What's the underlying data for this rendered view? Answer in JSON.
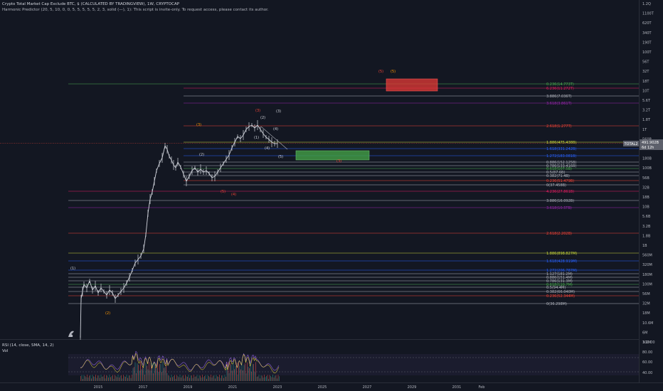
{
  "header": {
    "title": "Crypto Total Market Cap Exclude BTC, $ (CALCULATED BY TRADINGVIEW), 1W, CRYPTOCAP",
    "indicator": "Harmonic Predictor (20, 5, 10, 0, 0, 5, 5, 5, 5, 5, 2, 3, solid (—), 1): This script is invite-only. To request access, please contact its author."
  },
  "price_axis": {
    "labels": [
      "1.2Q",
      "1100T",
      "620T",
      "340T",
      "190T",
      "100T",
      "56T",
      "32T",
      "18T",
      "10T",
      "5.6T",
      "3.2T",
      "1.8T",
      "1T",
      "560B",
      "320B",
      "180B",
      "100B",
      "56B",
      "32B",
      "18B",
      "10B",
      "5.6B",
      "3.2B",
      "1.8B",
      "1B",
      "560M",
      "320M",
      "180M",
      "100M",
      "56M",
      "32M",
      "18M",
      "10.6M",
      "6M",
      "3.2M"
    ],
    "current_symbol": "TOTAL2",
    "current_price": "491.902B",
    "countdown": "6d 12h"
  },
  "rsi_axis": {
    "labels": [
      "100.00",
      "80.00",
      "60.00",
      "40.00"
    ]
  },
  "time_axis": {
    "labels": [
      "2015",
      "2017",
      "2019",
      "2021",
      "2023",
      "2025",
      "2027",
      "2029",
      "2031",
      "Feb"
    ]
  },
  "rsi": {
    "label": "RSI (14, close, SMA, 14, 2)"
  },
  "volume": {
    "label": "Vol"
  },
  "fib_levels": {
    "upper": [
      {
        "text": "0.236(14.773T)",
        "color": "#4caf50"
      },
      {
        "text": "6.236(11.272T)",
        "color": "#e91e63"
      },
      {
        "text": "3.886(7.036T)",
        "color": "#b2b5be"
      },
      {
        "text": "3.618(3.861T)",
        "color": "#9c27b0"
      },
      {
        "text": "2.618(1.277T)",
        "color": "#f44336"
      },
      {
        "text": "1.886(475.438B)",
        "color": "#cddc39"
      },
      {
        "text": "1.618(331.242B)",
        "color": "#2962ff"
      },
      {
        "text": "1.272(183.081B)",
        "color": "#2962ff"
      },
      {
        "text": "0.886(152.125B)",
        "color": "#b2b5be"
      },
      {
        "text": "0.786(133.416B)",
        "color": "#b2b5be"
      },
      {
        "text": "0.618(107.5B)",
        "color": "#4caf50"
      },
      {
        "text": "0.5(87.6B)",
        "color": "#b2b5be"
      },
      {
        "text": "0.382(71.4B)",
        "color": "#b2b5be"
      },
      {
        "text": "0.236(51.479B)",
        "color": "#f44336"
      },
      {
        "text": "0(37.458B)",
        "color": "#b2b5be"
      },
      {
        "text": "4.236(27.861B)",
        "color": "#e91e63"
      },
      {
        "text": "3.886(16.092B)",
        "color": "#b2b5be"
      },
      {
        "text": "3.618(10.5TB)",
        "color": "#9c27b0"
      },
      {
        "text": "2.618(2.202B)",
        "color": "#f44336"
      }
    ],
    "lower": [
      {
        "text": "1.886(898.827M)",
        "color": "#cddc39"
      },
      {
        "text": "1.618(428.919M)",
        "color": "#2962ff"
      },
      {
        "text": "1.272(206.787M)",
        "color": "#2962ff"
      },
      {
        "text": "1.127(181.2M)",
        "color": "#b2b5be"
      },
      {
        "text": "0.886(151.4M)",
        "color": "#b2b5be"
      },
      {
        "text": "0.786(131.3M)",
        "color": "#b2b5be"
      },
      {
        "text": "0.618(110.7M)",
        "color": "#4caf50"
      },
      {
        "text": "0.5(94.4M)",
        "color": "#b2b5be"
      },
      {
        "text": "0.382(66.040M)",
        "color": "#b2b5be"
      },
      {
        "text": "0.236(52.344M)",
        "color": "#f44336"
      },
      {
        "text": "0(36.298M)",
        "color": "#b2b5be"
      }
    ]
  },
  "wave_labels": [
    {
      "text": "(1)",
      "color": "#d1d4dc"
    },
    {
      "text": "(2)",
      "color": "#ff9800"
    },
    {
      "text": "(3)",
      "color": "#ff9800"
    },
    {
      "text": "(4)",
      "color": "#f44336"
    },
    {
      "text": "(5)",
      "color": "#f44336"
    },
    {
      "text": "(4)",
      "color": "#d1d4dc"
    },
    {
      "text": "(3)",
      "color": "#f44336"
    },
    {
      "text": "(2)",
      "color": "#d1d4dc"
    },
    {
      "text": "(1)",
      "color": "#d1d4dc"
    },
    {
      "text": "(4)",
      "color": "#d1d4dc"
    },
    {
      "text": "(3)",
      "color": "#d1d4dc"
    },
    {
      "text": "(5)",
      "color": "#d1d4dc"
    },
    {
      "text": "(2)",
      "color": "#d1d4dc"
    },
    {
      "text": "(3)",
      "color": "#f44336"
    },
    {
      "text": "(5)",
      "color": "#f44336"
    },
    {
      "text": "(5)",
      "color": "#ff9800"
    }
  ],
  "colors": {
    "background": "#131722",
    "candle": "#d1d4dc",
    "rsi_line": "#7e57c2",
    "target_red": "#e53935",
    "target_green": "#43a047",
    "price_tag": "#5d606b"
  }
}
